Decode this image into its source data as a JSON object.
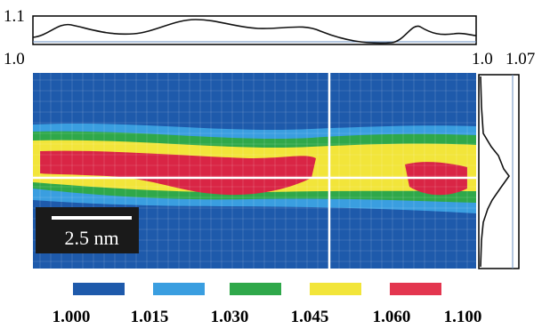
{
  "top_profile": {
    "y_max_label": "1.1",
    "y_min_label": "1.0",
    "right_label": "1.0"
  },
  "side_profile": {
    "left_label": "1.0",
    "right_label": "1.07"
  },
  "scale_bar": "2.5 nm",
  "legend": [
    {
      "label": "1.000",
      "color": "#1e5aab"
    },
    {
      "label": "1.015",
      "color": "#3a9ee0"
    },
    {
      "label": "1.030",
      "color": "#2fa84a"
    },
    {
      "label": "1.045",
      "color": "#f2e53a"
    },
    {
      "label": "1.060",
      "color": "#e3364f"
    },
    {
      "label": "1.100",
      "color": "#d92545"
    }
  ]
}
